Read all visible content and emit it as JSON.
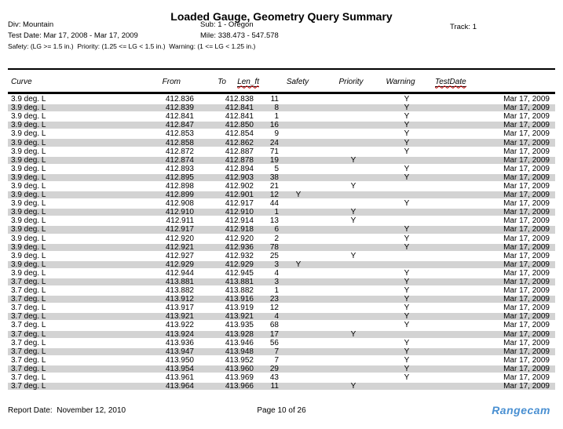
{
  "title": "Loaded Gauge, Geometry Query Summary",
  "header": {
    "div_label": "Div:",
    "div_value": "Mountain",
    "sub_label": "Sub:",
    "sub_value": "1 - Oregon",
    "track_label": "Track:",
    "track_value": "1",
    "test_date_label": "Test Date:",
    "test_date_value": "Mar 17, 2008 - Mar 17, 2009",
    "mile_label": "Mile:",
    "mile_value": "338.473 - 547.578",
    "criteria": "Safety: (LG >= 1.5 in.)  Priority: (1.25 <= LG < 1.5 in.)  Warning: (1 <= LG < 1.25 in.)"
  },
  "table": {
    "columns": [
      "Curve",
      "From",
      "To",
      "Len_ft",
      "Safety",
      "Priority",
      "Warning",
      "TestDate"
    ],
    "row_keys": [
      "curve",
      "from",
      "to",
      "len",
      "safety",
      "priority",
      "warning",
      "test_date"
    ],
    "rows": [
      {
        "curve": "3.9 deg. L",
        "from": "412.836",
        "to": "412.838",
        "len": "11",
        "safety": "",
        "priority": "",
        "warning": "Y",
        "test_date": "Mar 17, 2009"
      },
      {
        "curve": "3.9 deg. L",
        "from": "412.839",
        "to": "412.841",
        "len": "8",
        "safety": "",
        "priority": "",
        "warning": "Y",
        "test_date": "Mar 17, 2009"
      },
      {
        "curve": "3.9 deg. L",
        "from": "412.841",
        "to": "412.841",
        "len": "1",
        "safety": "",
        "priority": "",
        "warning": "Y",
        "test_date": "Mar 17, 2009"
      },
      {
        "curve": "3.9 deg. L",
        "from": "412.847",
        "to": "412.850",
        "len": "16",
        "safety": "",
        "priority": "",
        "warning": "Y",
        "test_date": "Mar 17, 2009"
      },
      {
        "curve": "3.9 deg. L",
        "from": "412.853",
        "to": "412.854",
        "len": "9",
        "safety": "",
        "priority": "",
        "warning": "Y",
        "test_date": "Mar 17, 2009"
      },
      {
        "curve": "3.9 deg. L",
        "from": "412.858",
        "to": "412.862",
        "len": "24",
        "safety": "",
        "priority": "",
        "warning": "Y",
        "test_date": "Mar 17, 2009"
      },
      {
        "curve": "3.9 deg. L",
        "from": "412.872",
        "to": "412.887",
        "len": "71",
        "safety": "",
        "priority": "",
        "warning": "Y",
        "test_date": "Mar 17, 2009"
      },
      {
        "curve": "3.9 deg. L",
        "from": "412.874",
        "to": "412.878",
        "len": "19",
        "safety": "",
        "priority": "Y",
        "warning": "",
        "test_date": "Mar 17, 2009"
      },
      {
        "curve": "3.9 deg. L",
        "from": "412.893",
        "to": "412.894",
        "len": "5",
        "safety": "",
        "priority": "",
        "warning": "Y",
        "test_date": "Mar 17, 2009"
      },
      {
        "curve": "3.9 deg. L",
        "from": "412.895",
        "to": "412.903",
        "len": "38",
        "safety": "",
        "priority": "",
        "warning": "Y",
        "test_date": "Mar 17, 2009"
      },
      {
        "curve": "3.9 deg. L",
        "from": "412.898",
        "to": "412.902",
        "len": "21",
        "safety": "",
        "priority": "Y",
        "warning": "",
        "test_date": "Mar 17, 2009"
      },
      {
        "curve": "3.9 deg. L",
        "from": "412.899",
        "to": "412.901",
        "len": "12",
        "safety": "Y",
        "priority": "",
        "warning": "",
        "test_date": "Mar 17, 2009"
      },
      {
        "curve": "3.9 deg. L",
        "from": "412.908",
        "to": "412.917",
        "len": "44",
        "safety": "",
        "priority": "",
        "warning": "Y",
        "test_date": "Mar 17, 2009"
      },
      {
        "curve": "3.9 deg. L",
        "from": "412.910",
        "to": "412.910",
        "len": "1",
        "safety": "",
        "priority": "Y",
        "warning": "",
        "test_date": "Mar 17, 2009"
      },
      {
        "curve": "3.9 deg. L",
        "from": "412.911",
        "to": "412.914",
        "len": "13",
        "safety": "",
        "priority": "Y",
        "warning": "",
        "test_date": "Mar 17, 2009"
      },
      {
        "curve": "3.9 deg. L",
        "from": "412.917",
        "to": "412.918",
        "len": "6",
        "safety": "",
        "priority": "",
        "warning": "Y",
        "test_date": "Mar 17, 2009"
      },
      {
        "curve": "3.9 deg. L",
        "from": "412.920",
        "to": "412.920",
        "len": "2",
        "safety": "",
        "priority": "",
        "warning": "Y",
        "test_date": "Mar 17, 2009"
      },
      {
        "curve": "3.9 deg. L",
        "from": "412.921",
        "to": "412.936",
        "len": "78",
        "safety": "",
        "priority": "",
        "warning": "Y",
        "test_date": "Mar 17, 2009"
      },
      {
        "curve": "3.9 deg. L",
        "from": "412.927",
        "to": "412.932",
        "len": "25",
        "safety": "",
        "priority": "Y",
        "warning": "",
        "test_date": "Mar 17, 2009"
      },
      {
        "curve": "3.9 deg. L",
        "from": "412.929",
        "to": "412.929",
        "len": "3",
        "safety": "Y",
        "priority": "",
        "warning": "",
        "test_date": "Mar 17, 2009"
      },
      {
        "curve": "3.9 deg. L",
        "from": "412.944",
        "to": "412.945",
        "len": "4",
        "safety": "",
        "priority": "",
        "warning": "Y",
        "test_date": "Mar 17, 2009"
      },
      {
        "curve": "3.7 deg. L",
        "from": "413.881",
        "to": "413.881",
        "len": "3",
        "safety": "",
        "priority": "",
        "warning": "Y",
        "test_date": "Mar 17, 2009"
      },
      {
        "curve": "3.7 deg. L",
        "from": "413.882",
        "to": "413.882",
        "len": "1",
        "safety": "",
        "priority": "",
        "warning": "Y",
        "test_date": "Mar 17, 2009"
      },
      {
        "curve": "3.7 deg. L",
        "from": "413.912",
        "to": "413.916",
        "len": "23",
        "safety": "",
        "priority": "",
        "warning": "Y",
        "test_date": "Mar 17, 2009"
      },
      {
        "curve": "3.7 deg. L",
        "from": "413.917",
        "to": "413.919",
        "len": "12",
        "safety": "",
        "priority": "",
        "warning": "Y",
        "test_date": "Mar 17, 2009"
      },
      {
        "curve": "3.7 deg. L",
        "from": "413.921",
        "to": "413.921",
        "len": "4",
        "safety": "",
        "priority": "",
        "warning": "Y",
        "test_date": "Mar 17, 2009"
      },
      {
        "curve": "3.7 deg. L",
        "from": "413.922",
        "to": "413.935",
        "len": "68",
        "safety": "",
        "priority": "",
        "warning": "Y",
        "test_date": "Mar 17, 2009"
      },
      {
        "curve": "3.7 deg. L",
        "from": "413.924",
        "to": "413.928",
        "len": "17",
        "safety": "",
        "priority": "Y",
        "warning": "",
        "test_date": "Mar 17, 2009"
      },
      {
        "curve": "3.7 deg. L",
        "from": "413.936",
        "to": "413.946",
        "len": "56",
        "safety": "",
        "priority": "",
        "warning": "Y",
        "test_date": "Mar 17, 2009"
      },
      {
        "curve": "3.7 deg. L",
        "from": "413.947",
        "to": "413.948",
        "len": "7",
        "safety": "",
        "priority": "",
        "warning": "Y",
        "test_date": "Mar 17, 2009"
      },
      {
        "curve": "3.7 deg. L",
        "from": "413.950",
        "to": "413.952",
        "len": "7",
        "safety": "",
        "priority": "",
        "warning": "Y",
        "test_date": "Mar 17, 2009"
      },
      {
        "curve": "3.7 deg. L",
        "from": "413.954",
        "to": "413.960",
        "len": "29",
        "safety": "",
        "priority": "",
        "warning": "Y",
        "test_date": "Mar 17, 2009"
      },
      {
        "curve": "3.7 deg. L",
        "from": "413.961",
        "to": "413.969",
        "len": "43",
        "safety": "",
        "priority": "",
        "warning": "Y",
        "test_date": "Mar 17, 2009"
      },
      {
        "curve": "3.7 deg. L",
        "from": "413.964",
        "to": "413.966",
        "len": "11",
        "safety": "",
        "priority": "Y",
        "warning": "",
        "test_date": "Mar 17, 2009"
      }
    ]
  },
  "footer": {
    "report_date_label": "Report Date:",
    "report_date_value": "November 12, 2010",
    "page_text": "Page 10 of 26",
    "logo_text": "Rangecam",
    "logo_color": "#4a90d2"
  }
}
